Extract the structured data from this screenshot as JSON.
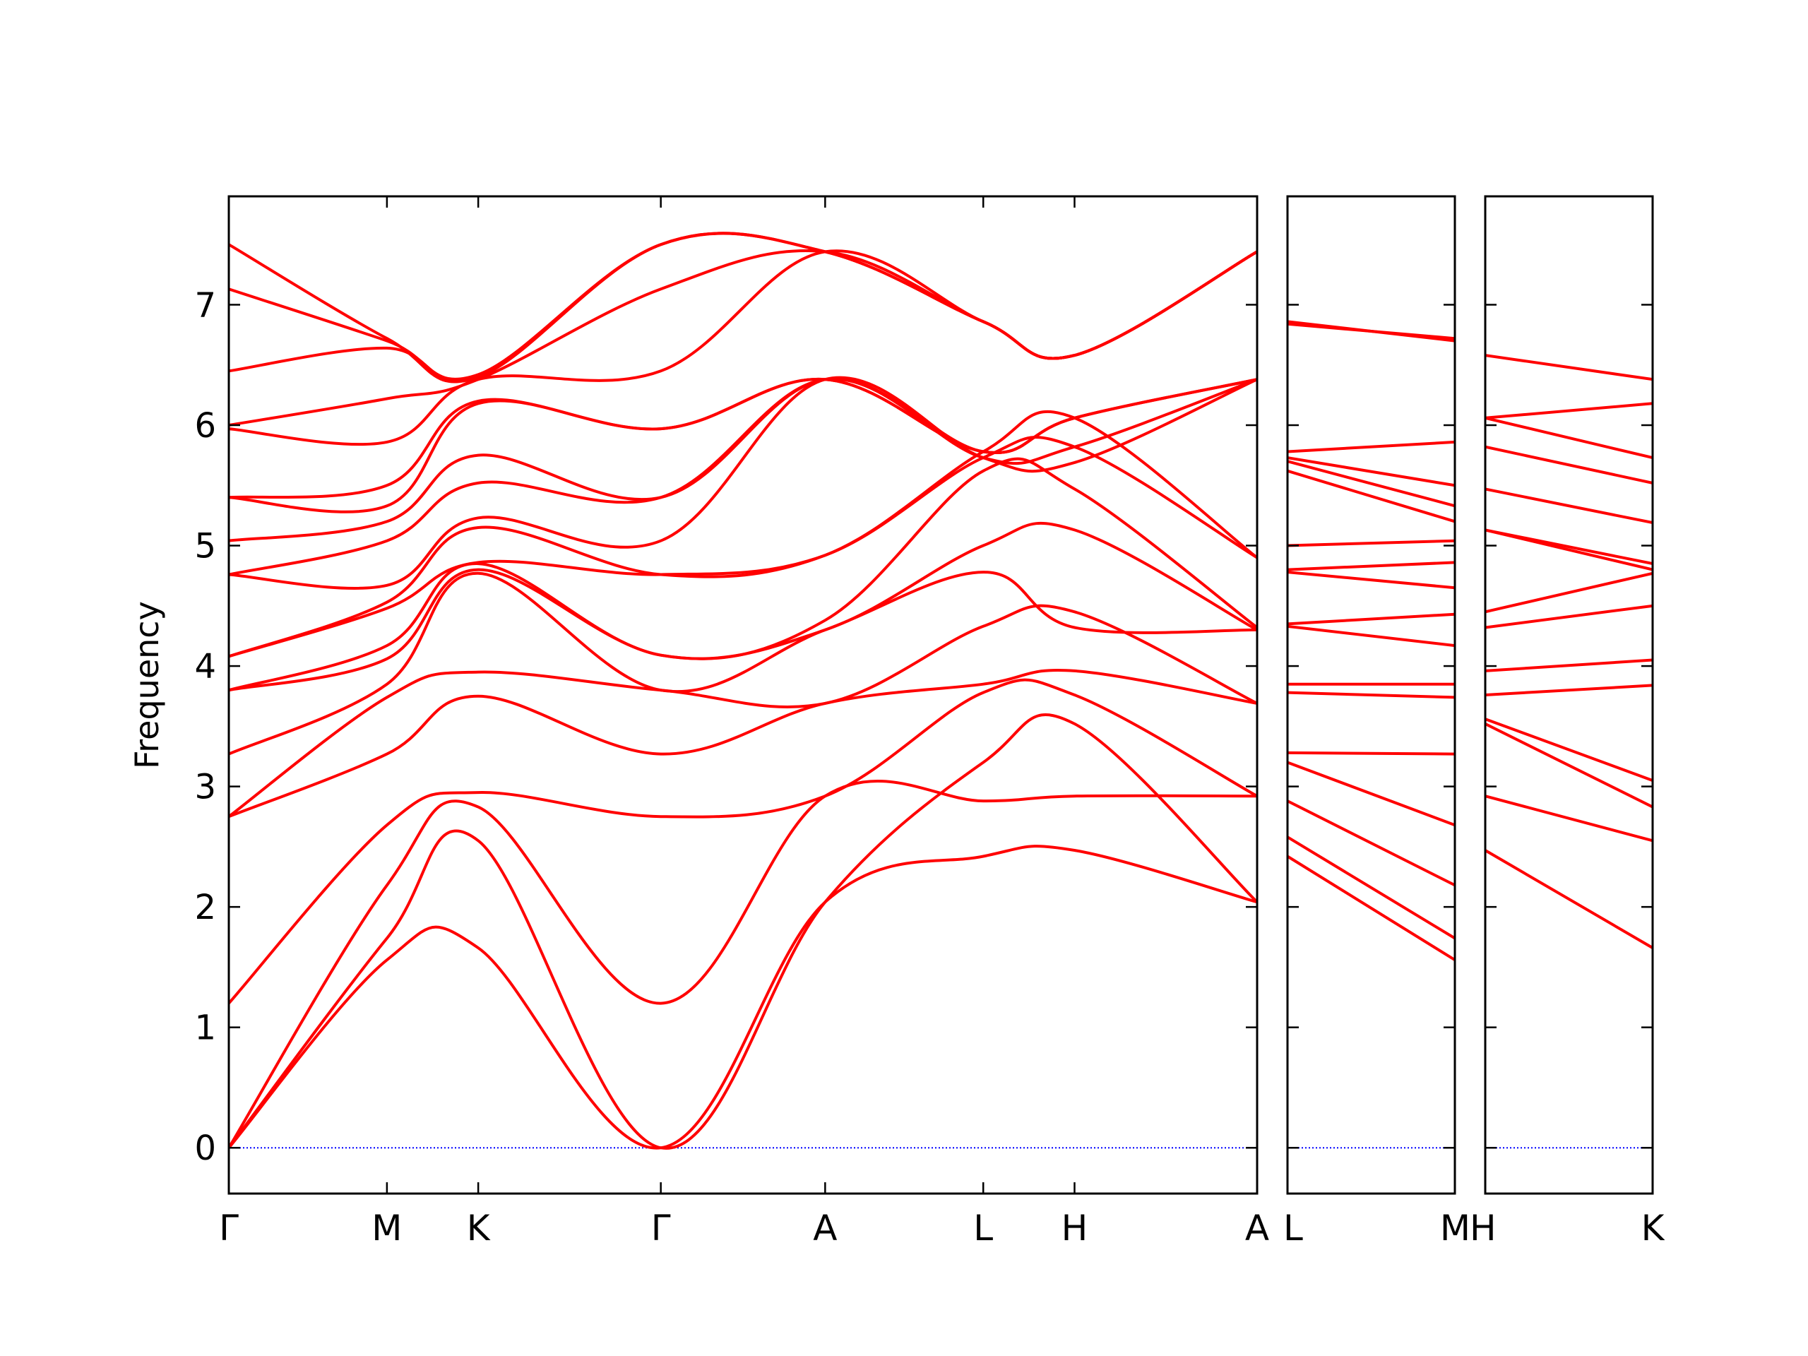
{
  "chart_data": {
    "type": "line",
    "ylabel": "Frequency",
    "ylim": [
      -0.38,
      7.9
    ],
    "yticks": [
      0,
      1,
      2,
      3,
      4,
      5,
      6,
      7
    ],
    "grid": false,
    "colors": {
      "bands": "#ff0000",
      "zero_line": "#0000ff",
      "axes": "#000000"
    },
    "panels": [
      {
        "labels": [
          "Γ",
          "M",
          "K",
          "Γ",
          "A",
          "L",
          "H",
          "A"
        ],
        "x": [
          0,
          0.866,
          1.366,
          2.366,
          3.266,
          4.132,
          4.632,
          5.632
        ],
        "bands": [
          [
            0,
            1.56,
            1.66,
            0,
            2.04,
            2.42,
            2.47,
            2.04
          ],
          [
            0,
            1.74,
            2.55,
            0,
            2.04,
            3.2,
            3.52,
            2.04
          ],
          [
            0,
            2.18,
            2.83,
            1.2,
            2.92,
            2.88,
            2.92,
            2.92
          ],
          [
            1.2,
            2.68,
            2.95,
            2.75,
            2.92,
            3.78,
            3.76,
            2.92
          ],
          [
            2.75,
            3.27,
            3.75,
            3.27,
            3.69,
            3.85,
            3.96,
            3.69
          ],
          [
            2.75,
            3.74,
            3.95,
            3.8,
            3.69,
            4.33,
            4.45,
            3.69
          ],
          [
            3.27,
            3.85,
            4.77,
            3.8,
            4.3,
            4.78,
            4.32,
            4.3
          ],
          [
            3.8,
            4.06,
            4.8,
            4.09,
            4.3,
            5.0,
            5.13,
            4.3
          ],
          [
            3.8,
            4.17,
            4.85,
            4.09,
            4.38,
            5.62,
            5.47,
            4.32
          ],
          [
            4.08,
            4.48,
            4.86,
            4.76,
            4.92,
            5.73,
            5.82,
            4.9
          ],
          [
            4.08,
            4.53,
            5.15,
            4.76,
            4.92,
            5.78,
            6.06,
            4.9
          ],
          [
            4.76,
            4.67,
            5.23,
            5.04,
            6.38,
            5.73,
            5.69,
            6.38
          ],
          [
            4.76,
            5.04,
            5.52,
            5.4,
            6.38,
            5.73,
            5.82,
            6.38
          ],
          [
            5.04,
            5.2,
            5.75,
            5.4,
            6.38,
            5.78,
            6.06,
            6.38
          ],
          [
            5.4,
            5.33,
            6.18,
            5.97,
            6.38,
            5.78,
            6.06,
            6.38
          ],
          [
            5.4,
            5.5,
            6.2,
            5.97,
            6.38,
            5.78,
            6.06,
            6.38
          ],
          [
            5.97,
            5.86,
            6.38,
            6.45,
            7.44,
            6.86,
            6.58,
            7.44
          ],
          [
            6.0,
            6.22,
            6.38,
            7.13,
            7.44,
            6.86,
            6.58,
            7.44
          ],
          [
            6.45,
            6.64,
            6.4,
            7.5,
            7.44,
            6.86,
            6.58,
            7.44
          ],
          [
            7.13,
            6.7,
            6.42,
            7.5,
            7.44,
            6.86,
            6.58,
            7.44
          ],
          [
            7.5,
            6.72,
            6.4,
            7.5,
            7.44,
            6.86,
            6.58,
            7.44
          ]
        ]
      },
      {
        "labels": [
          "L",
          "M"
        ],
        "x": [
          0,
          0.5
        ],
        "bands": [
          [
            2.42,
            1.56
          ],
          [
            2.58,
            1.74
          ],
          [
            2.88,
            2.18
          ],
          [
            3.2,
            2.68
          ],
          [
            3.28,
            3.27
          ],
          [
            3.78,
            3.74
          ],
          [
            3.85,
            3.85
          ],
          [
            4.33,
            4.17
          ],
          [
            4.35,
            4.43
          ],
          [
            4.78,
            4.65
          ],
          [
            4.8,
            4.86
          ],
          [
            5.0,
            5.04
          ],
          [
            5.62,
            5.2
          ],
          [
            5.7,
            5.33
          ],
          [
            5.73,
            5.5
          ],
          [
            5.78,
            5.86
          ],
          [
            6.86,
            6.7
          ],
          [
            6.84,
            6.72
          ]
        ]
      },
      {
        "labels": [
          "H",
          "K"
        ],
        "x": [
          0,
          0.5
        ],
        "bands": [
          [
            2.47,
            1.66
          ],
          [
            2.92,
            2.55
          ],
          [
            3.52,
            2.83
          ],
          [
            3.56,
            3.05
          ],
          [
            3.76,
            3.84
          ],
          [
            3.96,
            4.05
          ],
          [
            4.32,
            4.5
          ],
          [
            4.45,
            4.77
          ],
          [
            5.13,
            4.8
          ],
          [
            5.13,
            4.85
          ],
          [
            5.47,
            5.19
          ],
          [
            5.82,
            5.52
          ],
          [
            6.06,
            5.73
          ],
          [
            6.06,
            6.18
          ],
          [
            6.58,
            6.38
          ]
        ]
      }
    ]
  }
}
